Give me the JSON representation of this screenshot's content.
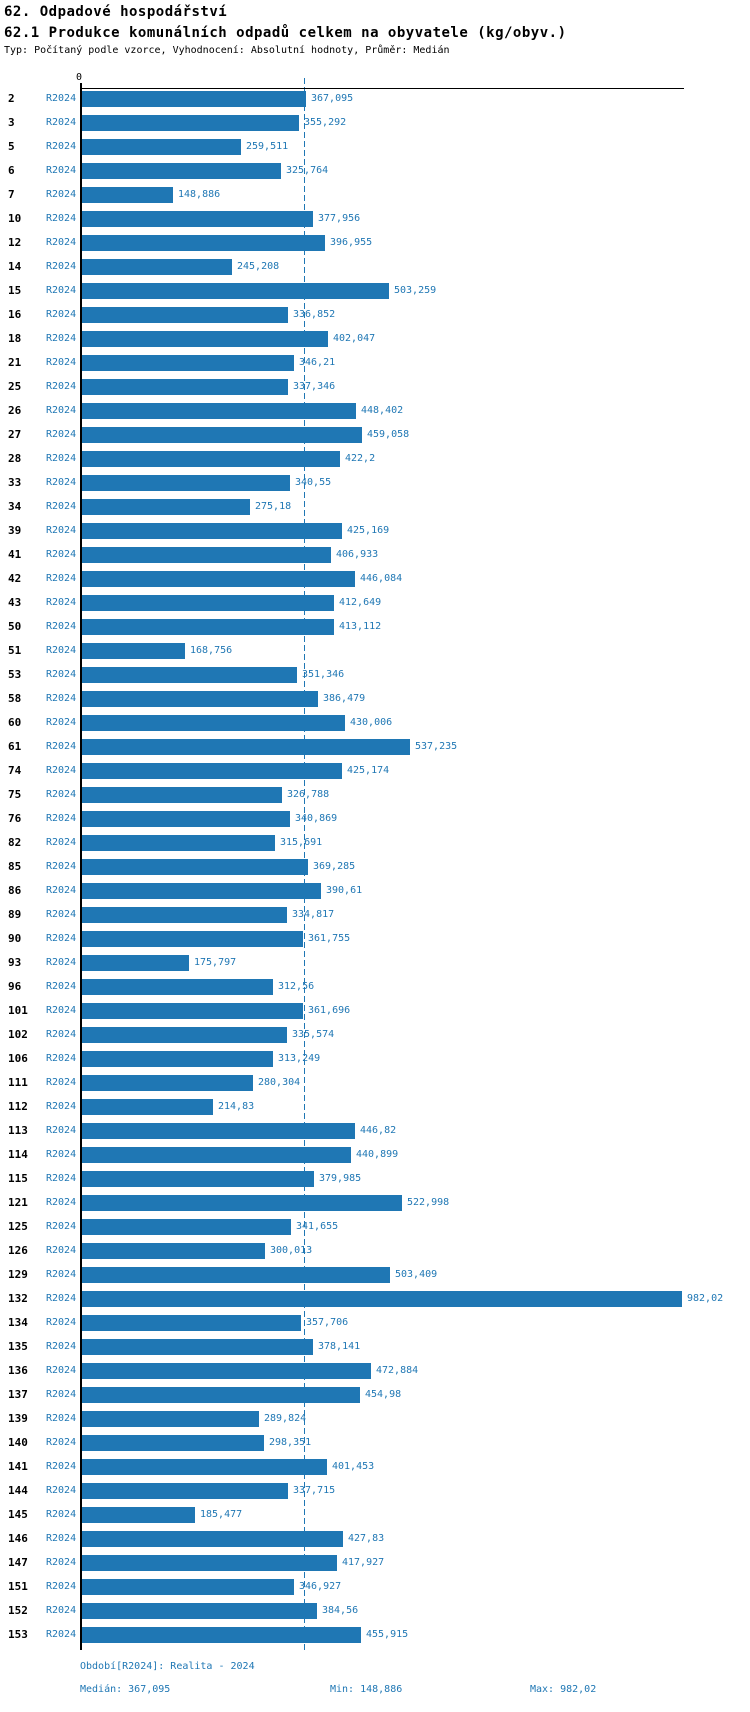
{
  "header": {
    "title": "62. Odpadové hospodářství",
    "subtitle": "62.1 Produkce komunálních odpadů celkem na obyvatele (kg/obyv.)",
    "meta": "Typ: Počítaný podle vzorce, Vyhodnocení: Absolutní hodnoty, Průměr: Medián"
  },
  "chart_data": {
    "type": "bar",
    "orientation": "horizontal",
    "title": "62.1 Produkce komunálních odpadů celkem na obyvatele (kg/obyv.)",
    "series_label": "R2024",
    "axis_origin_label": "0",
    "xlim": [
      0,
      1000
    ],
    "median_value": 367.095,
    "grid": false,
    "legend": false,
    "bar_color": "#1f77b4",
    "accent_text_color": "#1f77b4",
    "categories": [
      "2",
      "3",
      "5",
      "6",
      "7",
      "10",
      "12",
      "14",
      "15",
      "16",
      "18",
      "21",
      "25",
      "26",
      "27",
      "28",
      "33",
      "34",
      "39",
      "41",
      "42",
      "43",
      "50",
      "51",
      "53",
      "58",
      "60",
      "61",
      "74",
      "75",
      "76",
      "82",
      "85",
      "86",
      "89",
      "90",
      "93",
      "96",
      "101",
      "102",
      "106",
      "111",
      "112",
      "113",
      "114",
      "115",
      "121",
      "125",
      "126",
      "129",
      "132",
      "134",
      "135",
      "136",
      "137",
      "139",
      "140",
      "141",
      "144",
      "145",
      "146",
      "147",
      "151",
      "152",
      "153"
    ],
    "values": [
      367.095,
      355.292,
      259.511,
      325.764,
      148.886,
      377.956,
      396.955,
      245.208,
      503.259,
      336.852,
      402.047,
      346.21,
      337.346,
      448.402,
      459.058,
      422.2,
      340.55,
      275.18,
      425.169,
      406.933,
      446.084,
      412.649,
      413.112,
      168.756,
      351.346,
      386.479,
      430.006,
      537.235,
      425.174,
      326.788,
      340.869,
      315.691,
      369.285,
      390.61,
      334.817,
      361.755,
      175.797,
      312.56,
      361.696,
      335.574,
      313.249,
      280.304,
      214.83,
      446.82,
      440.899,
      379.985,
      522.998,
      341.655,
      300.013,
      503.409,
      982.02,
      357.706,
      378.141,
      472.884,
      454.98,
      289.824,
      298.351,
      401.453,
      337.715,
      185.477,
      427.83,
      417.927,
      346.927,
      384.56,
      455.915
    ],
    "value_labels": [
      "367,095",
      "355,292",
      "259,511",
      "325,764",
      "148,886",
      "377,956",
      "396,955",
      "245,208",
      "503,259",
      "336,852",
      "402,047",
      "346,21",
      "337,346",
      "448,402",
      "459,058",
      "422,2",
      "340,55",
      "275,18",
      "425,169",
      "406,933",
      "446,084",
      "412,649",
      "413,112",
      "168,756",
      "351,346",
      "386,479",
      "430,006",
      "537,235",
      "425,174",
      "326,788",
      "340,869",
      "315,691",
      "369,285",
      "390,61",
      "334,817",
      "361,755",
      "175,797",
      "312,56",
      "361,696",
      "335,574",
      "313,249",
      "280,304",
      "214,83",
      "446,82",
      "440,899",
      "379,985",
      "522,998",
      "341,655",
      "300,013",
      "503,409",
      "982,02",
      "357,706",
      "378,141",
      "472,884",
      "454,98",
      "289,824",
      "298,351",
      "401,453",
      "337,715",
      "185,477",
      "427,83",
      "417,927",
      "346,927",
      "384,56",
      "455,915"
    ]
  },
  "footer": {
    "period": "Období[R2024]: Realita - 2024",
    "median": "Medián: 367,095",
    "min": "Min: 148,886",
    "max": "Max: 982,02"
  }
}
